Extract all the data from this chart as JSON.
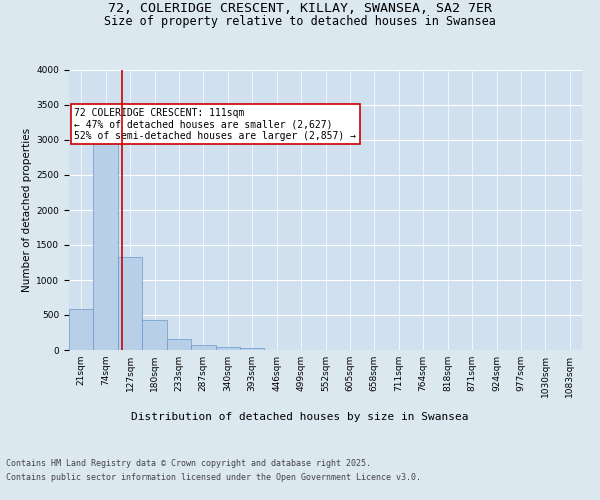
{
  "title1": "72, COLERIDGE CRESCENT, KILLAY, SWANSEA, SA2 7ER",
  "title2": "Size of property relative to detached houses in Swansea",
  "xlabel": "Distribution of detached houses by size in Swansea",
  "ylabel": "Number of detached properties",
  "footer1": "Contains HM Land Registry data © Crown copyright and database right 2025.",
  "footer2": "Contains public sector information licensed under the Open Government Licence v3.0.",
  "categories": [
    "21sqm",
    "74sqm",
    "127sqm",
    "180sqm",
    "233sqm",
    "287sqm",
    "340sqm",
    "393sqm",
    "446sqm",
    "499sqm",
    "552sqm",
    "605sqm",
    "658sqm",
    "711sqm",
    "764sqm",
    "818sqm",
    "871sqm",
    "924sqm",
    "977sqm",
    "1030sqm",
    "1083sqm"
  ],
  "values": [
    580,
    2970,
    1330,
    430,
    155,
    75,
    50,
    35,
    5,
    2,
    1,
    0,
    0,
    0,
    0,
    0,
    0,
    0,
    0,
    0,
    0
  ],
  "bar_color": "#b8cfe8",
  "bar_edge_color": "#6699cc",
  "vline_color": "#cc0000",
  "vline_pos": 1.65,
  "annotation_text": "72 COLERIDGE CRESCENT: 111sqm\n← 47% of detached houses are smaller (2,627)\n52% of semi-detached houses are larger (2,857) →",
  "annotation_box_color": "#cc0000",
  "ylim": [
    0,
    4000
  ],
  "yticks": [
    0,
    500,
    1000,
    1500,
    2000,
    2500,
    3000,
    3500,
    4000
  ],
  "bg_color": "#dce8f0",
  "plot_bg_color": "#d0e0ef",
  "grid_color": "#ffffff",
  "title_fontsize": 9.5,
  "subtitle_fontsize": 8.5,
  "ylabel_fontsize": 7.5,
  "xlabel_fontsize": 8,
  "tick_fontsize": 6.5,
  "annotation_fontsize": 7,
  "footer_fontsize": 6
}
